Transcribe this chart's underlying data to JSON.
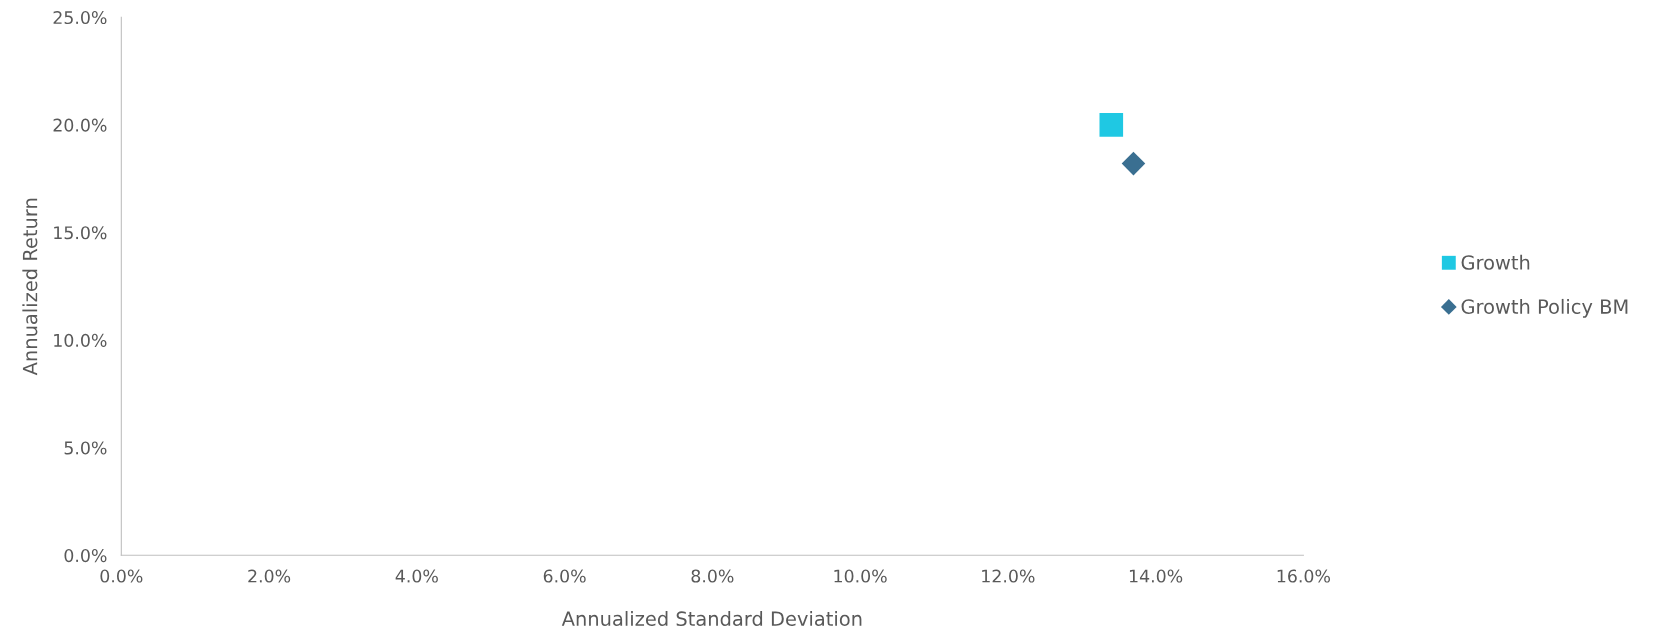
{
  "chart_data": {
    "type": "scatter",
    "xlabel": "Annualized Standard Deviation",
    "ylabel": "Annualized Return",
    "xlim": [
      0,
      16
    ],
    "ylim": [
      0,
      25
    ],
    "xticks": [
      {
        "value": 0,
        "label": "0.0%"
      },
      {
        "value": 2,
        "label": "2.0%"
      },
      {
        "value": 4,
        "label": "4.0%"
      },
      {
        "value": 6,
        "label": "6.0%"
      },
      {
        "value": 8,
        "label": "8.0%"
      },
      {
        "value": 10,
        "label": "10.0%"
      },
      {
        "value": 12,
        "label": "12.0%"
      },
      {
        "value": 14,
        "label": "14.0%"
      },
      {
        "value": 16,
        "label": "16.0%"
      }
    ],
    "yticks": [
      {
        "value": 0,
        "label": "0.0%"
      },
      {
        "value": 5,
        "label": "5.0%"
      },
      {
        "value": 10,
        "label": "10.0%"
      },
      {
        "value": 15,
        "label": "15.0%"
      },
      {
        "value": 20,
        "label": "20.0%"
      },
      {
        "value": 25,
        "label": "25.0%"
      }
    ],
    "grid": false,
    "legend": "right",
    "series": [
      {
        "name": "Growth",
        "color": "#1fc8e3",
        "marker": "square",
        "x": [
          13.4
        ],
        "values": [
          20.0
        ]
      },
      {
        "name": "Growth Policy BM",
        "color": "#3a6f91",
        "marker": "diamond",
        "x": [
          13.7
        ],
        "values": [
          18.2
        ]
      }
    ]
  }
}
